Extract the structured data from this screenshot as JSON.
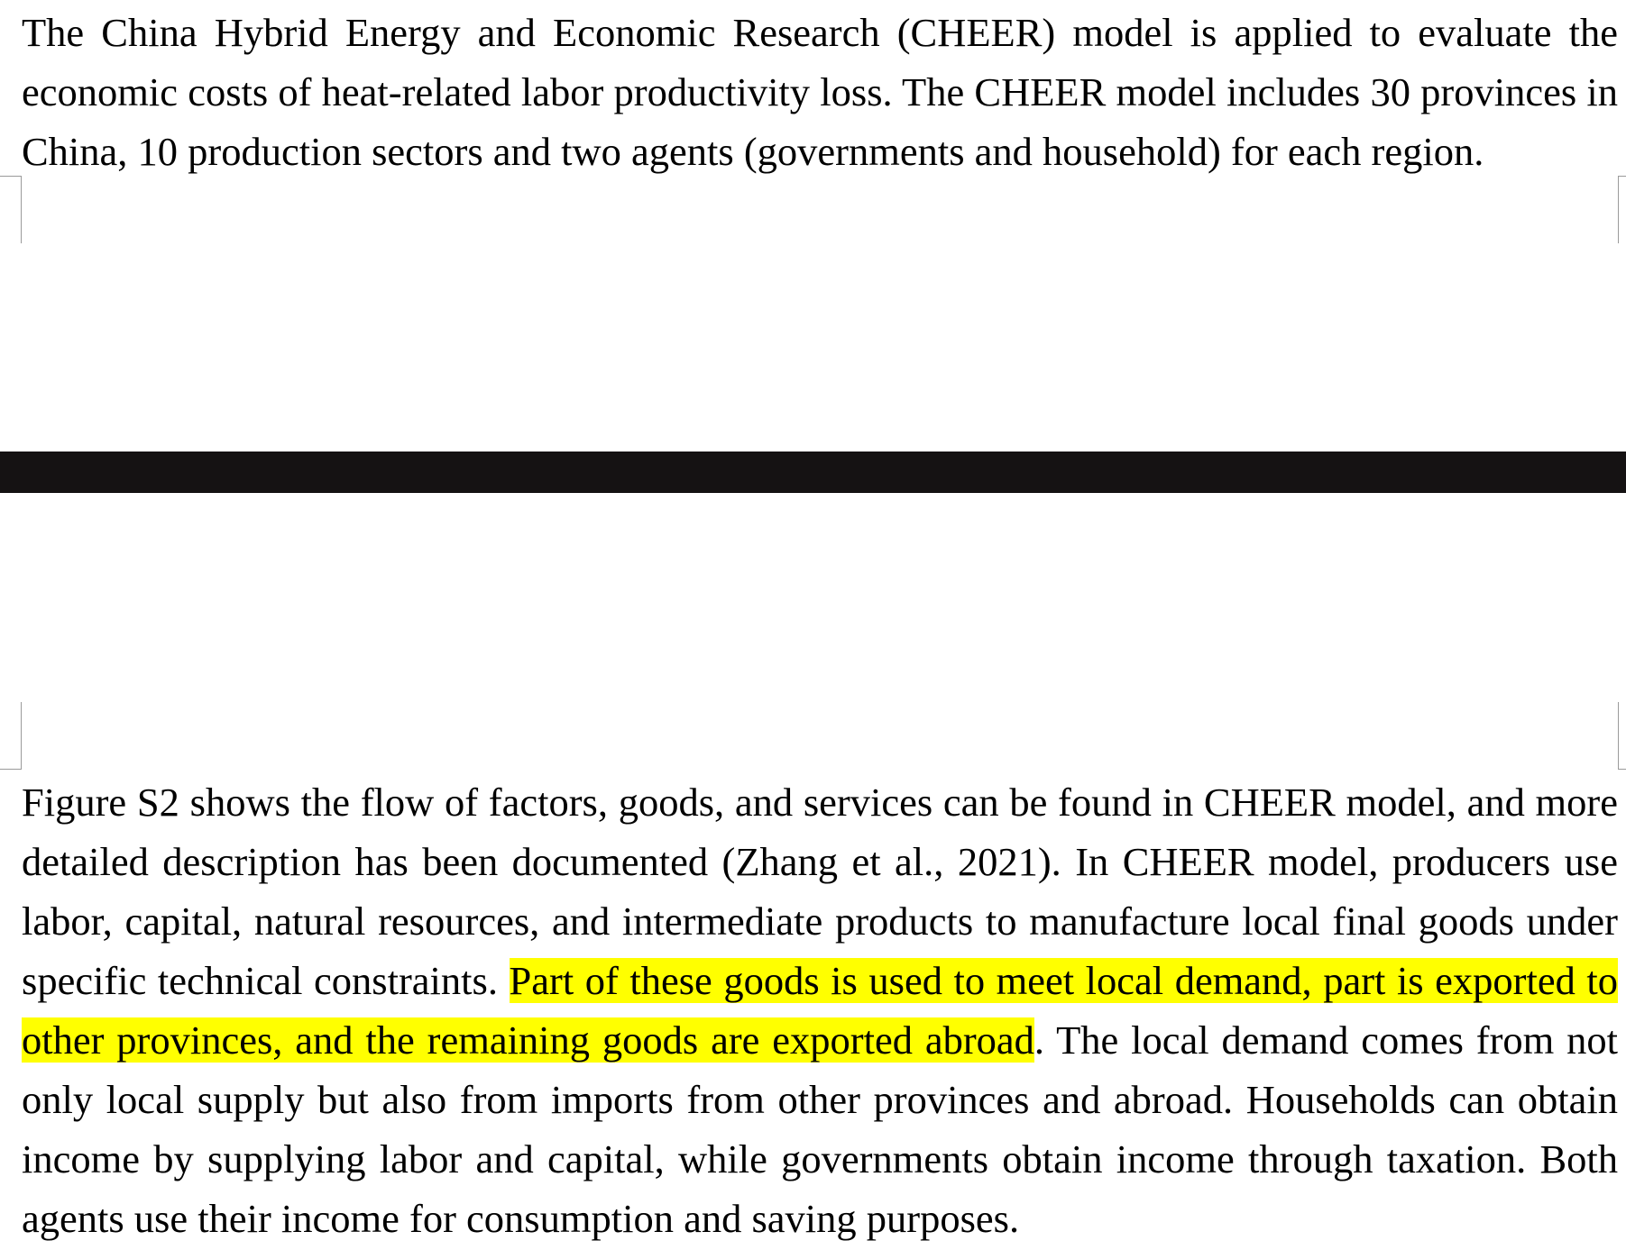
{
  "document": {
    "paragraph_top": "The China Hybrid Energy and Economic Research (CHEER) model is applied to evaluate the economic costs of heat-related labor productivity loss. The CHEER model includes 30 provinces in China, 10 production sectors and two agents (governments and household) for each region.",
    "paragraph_bottom": {
      "before_highlight": "Figure S2 shows the flow of factors, goods, and services can be found in CHEER model, and more detailed description has been documented (Zhang et al., 2021). In CHEER model, producers use labor, capital, natural resources, and intermediate products to manufacture local final goods under specific technical constraints. ",
      "highlighted": "Part of these goods is used to meet local demand, part is exported to other provinces, and the remaining goods are exported abroad",
      "after_highlight": ". The local demand comes from not only local supply but also from imports from other provinces and abroad. Households can obtain income by supplying labor and capital, while governments obtain income through taxation. Both agents use their income for consumption and saving purposes."
    }
  },
  "colors": {
    "highlight": "#ffff00",
    "page_break_bar": "#151213",
    "text": "#000000"
  }
}
